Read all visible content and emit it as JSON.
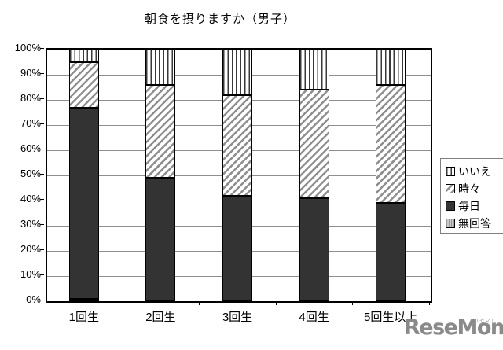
{
  "chart_data": {
    "type": "bar",
    "variant": "100%-stacked-column",
    "title": "朝食を摂りますか（男子）",
    "categories": [
      "1回生",
      "2回生",
      "3回生",
      "4回生",
      "5回生以上"
    ],
    "series": [
      {
        "name": "無回答",
        "pattern": "dotted-gray",
        "values": [
          1,
          0,
          0,
          0,
          0
        ]
      },
      {
        "name": "毎日",
        "pattern": "solid-dark",
        "values": [
          76,
          49,
          42,
          41,
          39
        ]
      },
      {
        "name": "時々",
        "pattern": "diagonal-hatch",
        "values": [
          18,
          37,
          40,
          43,
          47
        ]
      },
      {
        "name": "いいえ",
        "pattern": "vertical-stripes",
        "values": [
          5,
          14,
          18,
          16,
          14
        ]
      }
    ],
    "stack_order": "bottom-to-top",
    "y_ticks": [
      "0%",
      "10%",
      "20%",
      "30%",
      "40%",
      "50%",
      "60%",
      "70%",
      "80%",
      "90%",
      "100%"
    ],
    "ylim": [
      0,
      100
    ],
    "grid": true,
    "legend_position": "right"
  },
  "legend": {
    "items": [
      {
        "label": "いいえ",
        "pattern": "vertical-stripes"
      },
      {
        "label": "時々",
        "pattern": "diagonal-hatch"
      },
      {
        "label": "毎日",
        "pattern": "solid-dark"
      },
      {
        "label": "無回答",
        "pattern": "dotted-gray"
      }
    ]
  },
  "watermark": {
    "text": "ReseMom.",
    "ruby": "リセマム"
  },
  "colors": {
    "solid_dark": "#333333",
    "hatch_line": "#8f8f8f",
    "stripe_line": "#3a3a3a",
    "gray_fill": "#c8c8c8",
    "grid_line": "#8f8f8f",
    "logo_gray": "#8a8a8a"
  }
}
